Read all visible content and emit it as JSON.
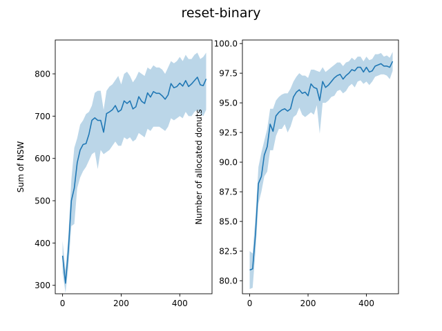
{
  "figure": {
    "title": "reset-binary"
  },
  "colors": {
    "line": "#1f77b4",
    "band": "#1f77b4"
  },
  "chart_data": [
    {
      "type": "line",
      "title": "",
      "xlabel": "",
      "ylabel": "Sum of NSW",
      "xlim": [
        -25,
        510
      ],
      "ylim": [
        280,
        880
      ],
      "xticks": [
        0,
        200,
        400
      ],
      "yticks": [
        300,
        400,
        500,
        600,
        700,
        800
      ],
      "grid": false,
      "series": [
        {
          "x": [
            0,
            10,
            20,
            30,
            40,
            50,
            60,
            70,
            80,
            90,
            100,
            110,
            120,
            130,
            140,
            150,
            160,
            170,
            180,
            190,
            200,
            210,
            220,
            230,
            240,
            250,
            260,
            270,
            280,
            290,
            300,
            310,
            320,
            330,
            340,
            350,
            360,
            370,
            380,
            390,
            400,
            410,
            420,
            430,
            440,
            450,
            460,
            470,
            480,
            490
          ],
          "y": [
            370,
            305,
            385,
            500,
            530,
            590,
            620,
            633,
            635,
            657,
            690,
            696,
            690,
            690,
            662,
            706,
            710,
            715,
            725,
            710,
            715,
            736,
            730,
            736,
            717,
            722,
            746,
            735,
            730,
            755,
            745,
            758,
            754,
            754,
            748,
            740,
            750,
            777,
            767,
            770,
            778,
            771,
            784,
            770,
            776,
            784,
            792,
            774,
            772,
            788
          ],
          "lower": [
            330,
            282,
            345,
            440,
            445,
            530,
            555,
            570,
            580,
            595,
            610,
            615,
            575,
            620,
            610,
            615,
            620,
            630,
            640,
            630,
            630,
            650,
            645,
            650,
            640,
            645,
            660,
            655,
            650,
            670,
            665,
            675,
            675,
            675,
            670,
            665,
            675,
            695,
            690,
            695,
            700,
            695,
            710,
            700,
            700,
            710,
            715,
            705,
            700,
            715
          ],
          "upper": [
            405,
            335,
            420,
            550,
            625,
            648,
            680,
            690,
            705,
            710,
            725,
            755,
            760,
            760,
            715,
            760,
            770,
            775,
            785,
            795,
            775,
            800,
            805,
            795,
            780,
            790,
            805,
            800,
            795,
            815,
            810,
            820,
            815,
            815,
            810,
            800,
            815,
            830,
            825,
            830,
            840,
            830,
            845,
            835,
            835,
            845,
            850,
            835,
            840,
            850
          ]
        }
      ]
    },
    {
      "type": "line",
      "title": "",
      "xlabel": "",
      "ylabel": "Number of allocated donuts",
      "xlim": [
        -25,
        510
      ],
      "ylim": [
        78.9,
        100.3
      ],
      "xticks": [
        0,
        200,
        400
      ],
      "yticks": [
        80.0,
        82.5,
        85.0,
        87.5,
        90.0,
        92.5,
        95.0,
        97.5,
        100.0
      ],
      "grid": false,
      "series": [
        {
          "x": [
            0,
            10,
            20,
            30,
            40,
            50,
            60,
            70,
            80,
            90,
            100,
            110,
            120,
            130,
            140,
            150,
            160,
            170,
            180,
            190,
            200,
            210,
            220,
            230,
            240,
            250,
            260,
            270,
            280,
            290,
            300,
            310,
            320,
            330,
            340,
            350,
            360,
            370,
            380,
            390,
            400,
            410,
            420,
            430,
            440,
            450,
            460,
            470,
            480,
            490
          ],
          "y": [
            80.9,
            81.0,
            84.0,
            88.2,
            88.8,
            90.6,
            91.3,
            93.2,
            92.6,
            93.9,
            94.2,
            94.4,
            94.5,
            94.3,
            94.5,
            95.5,
            95.9,
            96.1,
            95.8,
            95.9,
            95.6,
            96.6,
            96.3,
            96.2,
            95.2,
            96.8,
            96.3,
            96.5,
            96.8,
            97.1,
            97.3,
            97.4,
            97.0,
            97.3,
            97.5,
            97.8,
            97.7,
            98.0,
            98.0,
            97.6,
            98.0,
            97.6,
            97.7,
            98.1,
            98.2,
            98.3,
            98.1,
            98.1,
            98.0,
            98.5
          ],
          "lower": [
            79.3,
            79.4,
            82.5,
            86.5,
            87.5,
            88.8,
            89.2,
            91.0,
            91.0,
            92.2,
            92.8,
            92.8,
            93.2,
            92.5,
            93.0,
            93.8,
            94.0,
            94.6,
            94.0,
            93.8,
            94.0,
            94.2,
            94.0,
            94.8,
            92.4,
            95.0,
            95.0,
            95.2,
            95.5,
            95.6,
            96.0,
            96.1,
            95.8,
            96.0,
            96.4,
            96.6,
            96.3,
            96.8,
            96.9,
            96.6,
            96.8,
            96.5,
            96.8,
            97.2,
            97.3,
            97.4,
            97.4,
            97.3,
            97.0,
            97.7
          ],
          "upper": [
            82.5,
            82.3,
            85.5,
            89.6,
            90.8,
            91.8,
            92.8,
            94.5,
            94.5,
            95.2,
            95.5,
            95.7,
            95.8,
            95.8,
            96.2,
            96.8,
            97.2,
            97.5,
            97.3,
            97.3,
            97.1,
            97.8,
            97.8,
            97.7,
            97.6,
            98.0,
            97.6,
            97.8,
            98.0,
            98.2,
            98.4,
            98.4,
            98.1,
            98.4,
            98.5,
            98.8,
            98.6,
            98.9,
            98.9,
            98.5,
            98.9,
            98.6,
            98.7,
            99.1,
            99.1,
            99.2,
            98.9,
            99.0,
            98.8,
            99.3
          ]
        }
      ]
    }
  ]
}
